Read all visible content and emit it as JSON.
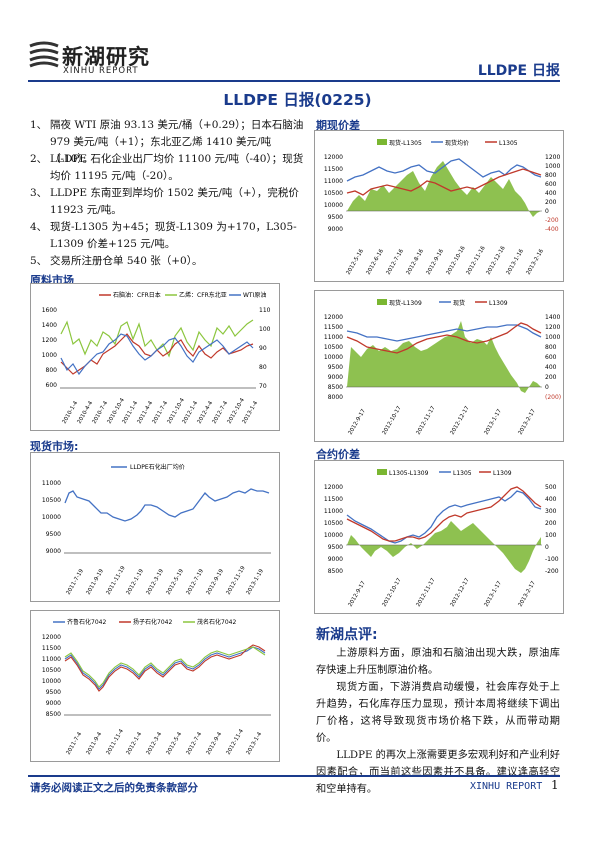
{
  "header": {
    "logo_cn": "新湖研究",
    "logo_en": "XINHU REPORT",
    "report_name": "LLDPE 日报"
  },
  "title": "LLDPE 日报(0225)",
  "bullets": [
    {
      "num": "1、",
      "text": "隔夜 WTI 原油 93.13 美元/桶（+0.29）；日本石脑油 979 美元/吨（+1）；东北亚乙烯 1410 美元/吨（-10）。"
    },
    {
      "num": "2、",
      "text": "LLDPE 石化企业出厂均价 11100 元/吨（-40）；现货均价 11195 元/吨（-20）。"
    },
    {
      "num": "3、",
      "text": "LLDPE 东南亚到岸均价 1502 美元/吨（+），完税价 11923 元/吨。"
    },
    {
      "num": "4、",
      "text": "现货-L1305 为+45；现货-L1309 为+170，L305-L1309 价差+125 元/吨。"
    },
    {
      "num": "5、",
      "text": "交易所注册仓单 540 张（+0）。"
    }
  ],
  "sections": {
    "raw": "原料市场",
    "spot": "现货市场:",
    "basis": "期现价差",
    "spread": "合约价差"
  },
  "charts": {
    "raw": {
      "legend": [
        "石脑油：CFR日本",
        "乙烯：CFR东北亚",
        "WTI原油"
      ],
      "left_ticks": [
        "1600",
        "1400",
        "1200",
        "1000",
        "800",
        "600"
      ],
      "right_ticks": [
        "110",
        "100",
        "90",
        "80",
        "70"
      ],
      "x_labels": [
        "2010-1-4",
        "2010-4-4",
        "2010-7-4",
        "2010-10-4",
        "2011-1-4",
        "2011-4-4",
        "2011-7-4",
        "2011-10-4",
        "2012-1-4",
        "2012-4-4",
        "2012-7-4",
        "2012-10-4",
        "2013-1-4"
      ]
    },
    "spot": {
      "legend": [
        "LLDPE石化出厂均价"
      ],
      "left_ticks": [
        "11000",
        "10500",
        "10000",
        "9500",
        "9000"
      ],
      "x_labels": [
        "2011-7-19",
        "2011-9-19",
        "2011-11-19",
        "2012-1-19",
        "2012-3-19",
        "2012-5-19",
        "2012-7-19",
        "2012-9-19",
        "2012-11-19",
        "2013-1-19"
      ]
    },
    "plants": {
      "legend": [
        "齐鲁石化7042",
        "扬子石化7042",
        "茂名石化7042"
      ],
      "left_ticks": [
        "12000",
        "11500",
        "11000",
        "10500",
        "10000",
        "9500",
        "9000",
        "8500"
      ],
      "x_labels": [
        "2011-7-4",
        "2011-9-4",
        "2011-11-4",
        "2012-1-4",
        "2012-3-4",
        "2012-5-4",
        "2012-7-4",
        "2012-9-4",
        "2012-11-4",
        "2013-1-4"
      ]
    },
    "basis1305": {
      "legend": [
        "现货-L1305",
        "现货均价",
        "L1305"
      ],
      "left_ticks": [
        "12000",
        "11500",
        "11000",
        "10500",
        "10000",
        "9500",
        "9000"
      ],
      "right_ticks": [
        "1200",
        "1000",
        "800",
        "600",
        "400",
        "200",
        "0",
        "-200",
        "-400"
      ],
      "x_labels": [
        "2012-5-16",
        "2012-6-16",
        "2012-7-16",
        "2012-8-16",
        "2012-9-16",
        "2012-10-16",
        "2012-11-16",
        "2012-12-16",
        "2013-1-16",
        "2013-2-16"
      ]
    },
    "basis1309": {
      "legend": [
        "现货-L1309",
        "现货",
        "L1309"
      ],
      "left_ticks": [
        "12000",
        "11500",
        "11000",
        "10500",
        "10000",
        "9500",
        "9000",
        "8500",
        "8000"
      ],
      "right_ticks": [
        "1400",
        "1200",
        "1000",
        "800",
        "600",
        "400",
        "200",
        "0",
        "(200)"
      ],
      "x_labels": [
        "2012-9-17",
        "2012-10-17",
        "2012-11-17",
        "2012-12-17",
        "2013-1-17",
        "2013-2-17"
      ]
    },
    "spread": {
      "legend": [
        "L1305-L1309",
        "L1305",
        "L1309"
      ],
      "left_ticks": [
        "12000",
        "11500",
        "11000",
        "10500",
        "10000",
        "9500",
        "9000",
        "8500"
      ],
      "right_ticks": [
        "500",
        "400",
        "300",
        "200",
        "100",
        "0",
        "-100",
        "-200"
      ],
      "x_labels": [
        "2012-9-17",
        "2012-10-17",
        "2012-11-17",
        "2012-12-17",
        "2013-1-17",
        "2013-2-17"
      ]
    }
  },
  "comment": {
    "title": "新湖点评:",
    "paragraphs": [
      "上游原料方面，原油和石脑油出现大跌，原油库存快速上升压制原油价格。",
      "现货方面，下游消费启动缓慢，社会库存处于上升趋势，石化库存压力显现，预计本周将继续下调出厂价格，这将导致现货市场价格下跌，从而带动期价。",
      "LLDPE 的再次上涨需要更多宏观利好和产业利好因素配合，而当前这些因素并不具备。建议逢高轻空和空单持有。"
    ]
  },
  "footer": {
    "disclaimer": "请务必阅读正文之后的免责条款部分",
    "brand": "XINHU REPORT",
    "page": "1"
  },
  "colors": {
    "accent": "#1a3b8c",
    "blue_line": "#4472c4",
    "red_line": "#c0392b",
    "green_fill": "#7ab631",
    "green_line": "#8cc63f"
  }
}
